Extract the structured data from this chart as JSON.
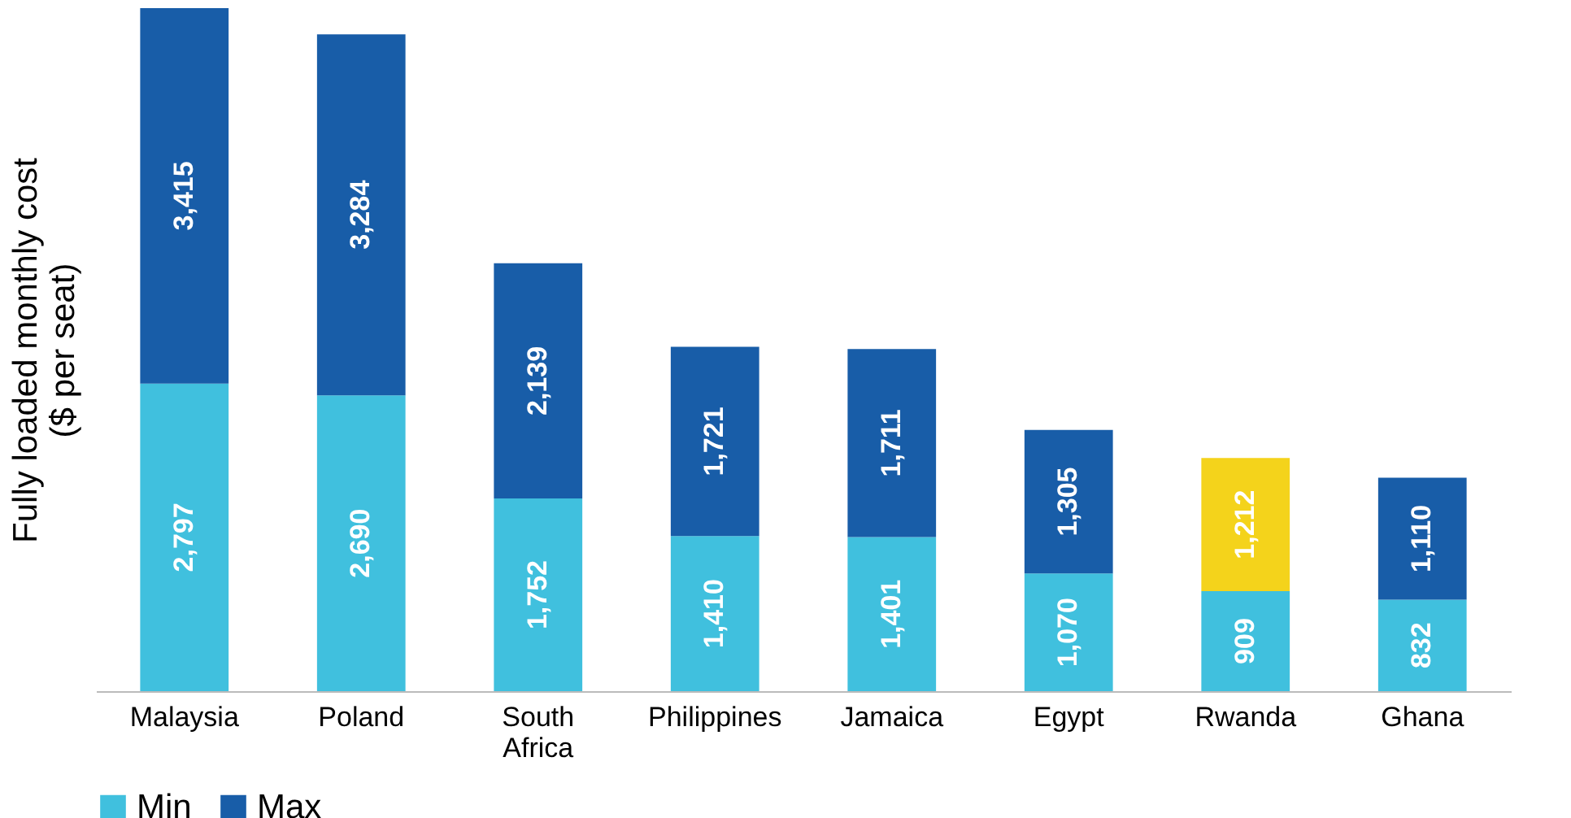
{
  "chart_data": {
    "type": "bar",
    "stacked": true,
    "ylabel": "Fully loaded monthly cost\n($ per seat)",
    "categories": [
      "Malaysia",
      "Poland",
      "South Africa",
      "Philippines",
      "Jamaica",
      "Egypt",
      "Rwanda",
      "Ghana"
    ],
    "series": [
      {
        "name": "Min",
        "color": "#40c0de",
        "values": [
          2797,
          2690,
          1752,
          1410,
          1401,
          1070,
          909,
          832
        ],
        "value_labels": [
          "2,797",
          "2,690",
          "1,752",
          "1,410",
          "1,401",
          "1,070",
          "909",
          "832"
        ]
      },
      {
        "name": "Max",
        "color": "#185da8",
        "colors": [
          "#185da8",
          "#185da8",
          "#185da8",
          "#185da8",
          "#185da8",
          "#185da8",
          "#f4d31b",
          "#185da8"
        ],
        "values": [
          3415,
          3284,
          2139,
          1721,
          1711,
          1305,
          1212,
          1110
        ],
        "value_labels": [
          "3,415",
          "3,284",
          "2,139",
          "1,721",
          "1,711",
          "1,305",
          "1,212",
          "1,110"
        ]
      }
    ],
    "legend": "bottom",
    "grid": false
  }
}
